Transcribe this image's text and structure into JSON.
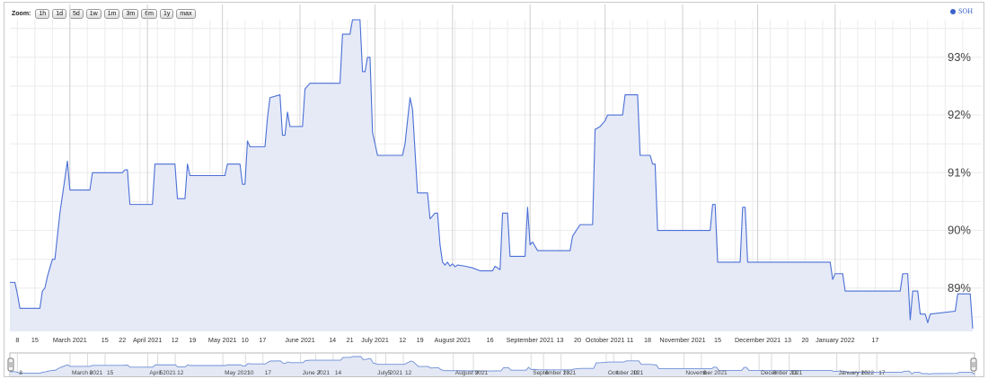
{
  "zoom": {
    "label": "Zoom:",
    "buttons": [
      "1h",
      "1d",
      "5d",
      "1w",
      "1m",
      "3m",
      "6m",
      "1y",
      "max"
    ]
  },
  "legend": {
    "label": "SOH",
    "color": "#3b63c8"
  },
  "colors": {
    "line": "#4a6fd6",
    "fill": "#e6eaf7",
    "grid": "#ececec",
    "gridMajor": "#cfcfcf",
    "navLine": "#6e8fd8",
    "navFill": "#e3e8f4"
  },
  "chart_data": {
    "type": "area",
    "title": "",
    "xlabel": "",
    "ylabel": "",
    "series": [
      {
        "name": "SOH",
        "points": [
          [
            "2021-02-05",
            89.1
          ],
          [
            "2021-02-07",
            89.1
          ],
          [
            "2021-02-08",
            88.9
          ],
          [
            "2021-02-09",
            88.65
          ],
          [
            "2021-02-17",
            88.65
          ],
          [
            "2021-02-18",
            88.95
          ],
          [
            "2021-02-19",
            89.0
          ],
          [
            "2021-02-20",
            89.2
          ],
          [
            "2021-02-22",
            89.5
          ],
          [
            "2021-02-23",
            89.5
          ],
          [
            "2021-02-25",
            90.3
          ],
          [
            "2021-02-27",
            90.9
          ],
          [
            "2021-02-28",
            91.2
          ],
          [
            "2021-03-01",
            90.7
          ],
          [
            "2021-03-09",
            90.7
          ],
          [
            "2021-03-10",
            91.0
          ],
          [
            "2021-03-22",
            91.0
          ],
          [
            "2021-03-23",
            91.05
          ],
          [
            "2021-03-24",
            91.05
          ],
          [
            "2021-03-25",
            90.45
          ],
          [
            "2021-04-03",
            90.45
          ],
          [
            "2021-04-04",
            91.15
          ],
          [
            "2021-04-12",
            91.15
          ],
          [
            "2021-04-13",
            90.55
          ],
          [
            "2021-04-16",
            90.55
          ],
          [
            "2021-04-17",
            91.15
          ],
          [
            "2021-04-18",
            90.95
          ],
          [
            "2021-05-02",
            90.95
          ],
          [
            "2021-05-03",
            91.15
          ],
          [
            "2021-05-08",
            91.15
          ],
          [
            "2021-05-09",
            90.8
          ],
          [
            "2021-05-10",
            90.8
          ],
          [
            "2021-05-11",
            91.55
          ],
          [
            "2021-05-12",
            91.45
          ],
          [
            "2021-05-18",
            91.45
          ],
          [
            "2021-05-19",
            91.95
          ],
          [
            "2021-05-20",
            92.3
          ],
          [
            "2021-05-24",
            92.35
          ],
          [
            "2021-05-25",
            91.65
          ],
          [
            "2021-05-26",
            91.65
          ],
          [
            "2021-05-27",
            92.05
          ],
          [
            "2021-05-28",
            91.8
          ],
          [
            "2021-06-02",
            91.8
          ],
          [
            "2021-06-03",
            92.45
          ],
          [
            "2021-06-04",
            92.5
          ],
          [
            "2021-06-05",
            92.55
          ],
          [
            "2021-06-17",
            92.55
          ],
          [
            "2021-06-18",
            93.4
          ],
          [
            "2021-06-21",
            93.4
          ],
          [
            "2021-06-22",
            93.65
          ],
          [
            "2021-06-25",
            93.65
          ],
          [
            "2021-06-26",
            92.75
          ],
          [
            "2021-06-27",
            92.75
          ],
          [
            "2021-06-28",
            93.0
          ],
          [
            "2021-06-29",
            93.0
          ],
          [
            "2021-06-30",
            91.7
          ],
          [
            "2021-07-02",
            91.3
          ],
          [
            "2021-07-12",
            91.3
          ],
          [
            "2021-07-13",
            91.5
          ],
          [
            "2021-07-14",
            91.9
          ],
          [
            "2021-07-15",
            92.3
          ],
          [
            "2021-07-16",
            92.1
          ],
          [
            "2021-07-18",
            90.65
          ],
          [
            "2021-07-22",
            90.65
          ],
          [
            "2021-07-23",
            90.2
          ],
          [
            "2021-07-25",
            90.3
          ],
          [
            "2021-07-26",
            90.3
          ],
          [
            "2021-07-27",
            89.75
          ],
          [
            "2021-07-28",
            89.45
          ],
          [
            "2021-07-29",
            89.4
          ],
          [
            "2021-07-30",
            89.45
          ],
          [
            "2021-07-31",
            89.38
          ],
          [
            "2021-08-01",
            89.42
          ],
          [
            "2021-08-02",
            89.37
          ],
          [
            "2021-08-03",
            89.4
          ],
          [
            "2021-08-06",
            89.38
          ],
          [
            "2021-08-09",
            89.35
          ],
          [
            "2021-08-12",
            89.3
          ],
          [
            "2021-08-17",
            89.3
          ],
          [
            "2021-08-18",
            89.38
          ],
          [
            "2021-08-20",
            89.32
          ],
          [
            "2021-08-21",
            90.3
          ],
          [
            "2021-08-23",
            90.3
          ],
          [
            "2021-08-24",
            89.55
          ],
          [
            "2021-08-30",
            89.55
          ],
          [
            "2021-08-31",
            90.4
          ],
          [
            "2021-09-01",
            89.75
          ],
          [
            "2021-09-02",
            89.8
          ],
          [
            "2021-09-04",
            89.65
          ],
          [
            "2021-09-17",
            89.65
          ],
          [
            "2021-09-18",
            89.9
          ],
          [
            "2021-09-21",
            90.1
          ],
          [
            "2021-09-26",
            90.1
          ],
          [
            "2021-09-27",
            91.75
          ],
          [
            "2021-09-29",
            91.8
          ],
          [
            "2021-10-01",
            91.9
          ],
          [
            "2021-10-02",
            92.0
          ],
          [
            "2021-10-08",
            92.0
          ],
          [
            "2021-10-09",
            92.35
          ],
          [
            "2021-10-14",
            92.35
          ],
          [
            "2021-10-15",
            91.3
          ],
          [
            "2021-10-19",
            91.3
          ],
          [
            "2021-10-20",
            91.15
          ],
          [
            "2021-10-21",
            91.15
          ],
          [
            "2021-10-22",
            90.0
          ],
          [
            "2021-11-12",
            90.0
          ],
          [
            "2021-11-13",
            90.45
          ],
          [
            "2021-11-14",
            90.45
          ],
          [
            "2021-11-15",
            89.45
          ],
          [
            "2021-11-24",
            89.45
          ],
          [
            "2021-11-25",
            90.4
          ],
          [
            "2021-11-26",
            90.4
          ],
          [
            "2021-11-27",
            89.45
          ],
          [
            "2021-12-03",
            89.45
          ],
          [
            "2021-12-04",
            89.45
          ],
          [
            "2021-12-30",
            89.45
          ],
          [
            "2021-12-31",
            89.15
          ],
          [
            "2022-01-01",
            89.25
          ],
          [
            "2022-01-04",
            89.25
          ],
          [
            "2022-01-05",
            88.95
          ],
          [
            "2022-01-27",
            88.95
          ],
          [
            "2022-01-28",
            89.25
          ],
          [
            "2022-01-30",
            89.25
          ],
          [
            "2022-01-31",
            88.45
          ],
          [
            "2022-02-01",
            88.95
          ],
          [
            "2022-02-03",
            88.95
          ],
          [
            "2022-02-04",
            88.55
          ],
          [
            "2022-02-05",
            88.55
          ],
          [
            "2022-02-06",
            88.55
          ],
          [
            "2022-02-07",
            88.4
          ],
          [
            "2022-02-08",
            88.55
          ],
          [
            "2022-02-18",
            88.6
          ],
          [
            "2022-02-19",
            88.9
          ],
          [
            "2022-02-24",
            88.9
          ],
          [
            "2022-02-25",
            88.3
          ]
        ]
      }
    ],
    "xlim": [
      "2021-02-05",
      "2022-02-25"
    ],
    "ylim": [
      88.25,
      93.65
    ],
    "y_ticks": [
      {
        "value": 89,
        "label": "89%"
      },
      {
        "value": 90,
        "label": "90%"
      },
      {
        "value": 91,
        "label": "91%"
      },
      {
        "value": 92,
        "label": "92%"
      },
      {
        "value": 93,
        "label": "93%"
      }
    ],
    "x_ticks": [
      {
        "date": "2021-02-08",
        "label": "8",
        "major": false
      },
      {
        "date": "2021-02-15",
        "label": "15",
        "major": false
      },
      {
        "date": "2021-03-01",
        "label": "March 2021",
        "major": true
      },
      {
        "date": "2021-03-15",
        "label": "15",
        "major": false
      },
      {
        "date": "2021-03-22",
        "label": "22",
        "major": false
      },
      {
        "date": "2021-04-01",
        "label": "April 2021",
        "major": true
      },
      {
        "date": "2021-04-12",
        "label": "12",
        "major": false
      },
      {
        "date": "2021-04-19",
        "label": "19",
        "major": false
      },
      {
        "date": "2021-05-01",
        "label": "May 2021",
        "major": true
      },
      {
        "date": "2021-05-10",
        "label": "10",
        "major": false
      },
      {
        "date": "2021-05-17",
        "label": "17",
        "major": false
      },
      {
        "date": "2021-06-01",
        "label": "June 2021",
        "major": true
      },
      {
        "date": "2021-06-14",
        "label": "14",
        "major": false
      },
      {
        "date": "2021-06-21",
        "label": "21",
        "major": false
      },
      {
        "date": "2021-07-01",
        "label": "July 2021",
        "major": true
      },
      {
        "date": "2021-07-12",
        "label": "12",
        "major": false
      },
      {
        "date": "2021-07-19",
        "label": "19",
        "major": false
      },
      {
        "date": "2021-08-01",
        "label": "August 2021",
        "major": true
      },
      {
        "date": "2021-08-16",
        "label": "16",
        "major": false
      },
      {
        "date": "2021-09-01",
        "label": "September 2021",
        "major": true
      },
      {
        "date": "2021-09-13",
        "label": "13",
        "major": false
      },
      {
        "date": "2021-09-20",
        "label": "20",
        "major": false
      },
      {
        "date": "2021-10-01",
        "label": "October 2021",
        "major": true
      },
      {
        "date": "2021-10-11",
        "label": "11",
        "major": false
      },
      {
        "date": "2021-10-18",
        "label": "18",
        "major": false
      },
      {
        "date": "2021-11-01",
        "label": "November 2021",
        "major": true
      },
      {
        "date": "2021-11-15",
        "label": "15",
        "major": false
      },
      {
        "date": "2021-12-01",
        "label": "December 2021",
        "major": true
      },
      {
        "date": "2021-12-13",
        "label": "13",
        "major": false
      },
      {
        "date": "2021-12-20",
        "label": "20",
        "major": false
      },
      {
        "date": "2022-01-01",
        "label": "January 2022",
        "major": true
      },
      {
        "date": "2022-01-17",
        "label": "17",
        "major": false
      }
    ],
    "navigator_ticks": [
      {
        "date": "2021-02-08",
        "label": "8"
      },
      {
        "date": "2021-03-01",
        "label": "March 2021"
      },
      {
        "date": "2021-03-08",
        "label": "8"
      },
      {
        "date": "2021-03-15",
        "label": "15"
      },
      {
        "date": "2021-04-01",
        "label": "April 2021"
      },
      {
        "date": "2021-04-05",
        "label": "5"
      },
      {
        "date": "2021-04-12",
        "label": "12"
      },
      {
        "date": "2021-05-01",
        "label": "May 2021"
      },
      {
        "date": "2021-05-10",
        "label": "10"
      },
      {
        "date": "2021-05-17",
        "label": "17"
      },
      {
        "date": "2021-06-01",
        "label": "June 2021"
      },
      {
        "date": "2021-06-07",
        "label": "7"
      },
      {
        "date": "2021-06-14",
        "label": "14"
      },
      {
        "date": "2021-07-01",
        "label": "July 2021"
      },
      {
        "date": "2021-07-05",
        "label": "5"
      },
      {
        "date": "2021-07-12",
        "label": "12"
      },
      {
        "date": "2021-08-01",
        "label": "August 2021"
      },
      {
        "date": "2021-08-09",
        "label": "9"
      },
      {
        "date": "2021-09-01",
        "label": "September 2021"
      },
      {
        "date": "2021-09-06",
        "label": "6"
      },
      {
        "date": "2021-09-13",
        "label": "13"
      },
      {
        "date": "2021-10-01",
        "label": "October 2021"
      },
      {
        "date": "2021-10-04",
        "label": "4"
      },
      {
        "date": "2021-10-11",
        "label": "11"
      },
      {
        "date": "2021-11-01",
        "label": "November 2021"
      },
      {
        "date": "2021-11-08",
        "label": "8"
      },
      {
        "date": "2021-12-01",
        "label": "December 2021"
      },
      {
        "date": "2021-12-06",
        "label": "6"
      },
      {
        "date": "2021-12-13",
        "label": "13"
      },
      {
        "date": "2022-01-01",
        "label": "January 2022"
      },
      {
        "date": "2022-01-10",
        "label": "10"
      },
      {
        "date": "2022-01-17",
        "label": "17"
      }
    ],
    "grid": true,
    "legend": "top-right"
  }
}
